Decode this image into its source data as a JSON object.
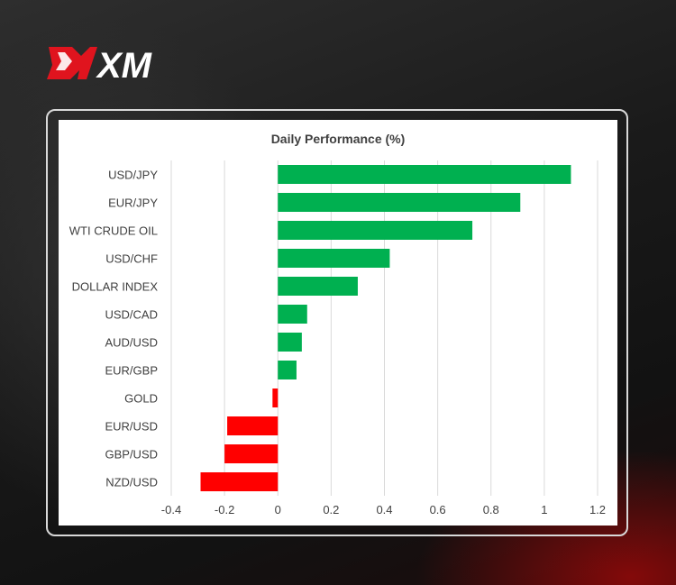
{
  "brand": {
    "name": "XM"
  },
  "colors": {
    "positive": "#00b050",
    "negative": "#ff0000",
    "grid": "#d9d9d9",
    "text": "#404040"
  },
  "chart_data": {
    "type": "bar",
    "orientation": "horizontal",
    "title": "Daily Performance  (%)",
    "categories": [
      "USD/JPY",
      "EUR/JPY",
      "WTI CRUDE OIL",
      "USD/CHF",
      "DOLLAR INDEX",
      "USD/CAD",
      "AUD/USD",
      "EUR/GBP",
      "GOLD",
      "EUR/USD",
      "GBP/USD",
      "NZD/USD"
    ],
    "values": [
      1.1,
      0.91,
      0.73,
      0.42,
      0.3,
      0.11,
      0.09,
      0.07,
      -0.02,
      -0.19,
      -0.2,
      -0.29
    ],
    "xlim": [
      -0.4,
      1.2
    ],
    "xticks": [
      -0.4,
      -0.2,
      0,
      0.2,
      0.4,
      0.6,
      0.8,
      1,
      1.2
    ],
    "xtick_labels": [
      "-0.4",
      "-0.2",
      "0",
      "0.2",
      "0.4",
      "0.6",
      "0.8",
      "1",
      "1.2"
    ],
    "grid": "vertical",
    "legend": "none"
  }
}
